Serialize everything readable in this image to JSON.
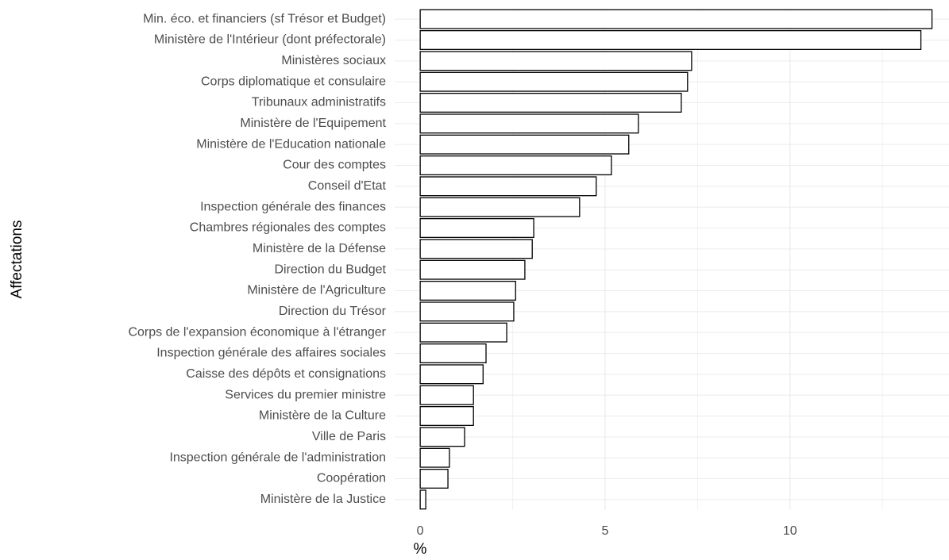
{
  "chart_data": {
    "type": "barh",
    "categories": [
      "Min. éco. et financiers (sf Trésor et Budget)",
      "Ministère de l'Intérieur (dont préfectorale)",
      "Ministères sociaux",
      "Corps diplomatique et consulaire",
      "Tribunaux administratifs",
      "Ministère de l'Equipement",
      "Ministère de l'Education nationale",
      "Cour des comptes",
      "Conseil d'Etat",
      "Inspection générale des finances",
      "Chambres régionales des comptes",
      "Ministère de la Défense",
      "Direction du Budget",
      "Ministère de l'Agriculture",
      "Direction du Trésor",
      "Corps de l'expansion économique à l'étranger",
      "Inspection générale des affaires sociales",
      "Caisse des dépôts et consignations",
      "Services du premier ministre",
      "Ministère de la Culture",
      "Ville de Paris",
      "Inspection générale de l'administration",
      "Coopération",
      "Ministère de la Justice"
    ],
    "values": [
      13.84,
      13.54,
      7.34,
      7.23,
      7.06,
      5.9,
      5.64,
      5.17,
      4.76,
      4.31,
      3.07,
      3.03,
      2.83,
      2.58,
      2.53,
      2.34,
      1.78,
      1.7,
      1.44,
      1.44,
      1.2,
      0.79,
      0.75,
      0.15
    ],
    "color": "#ffffff",
    "edgecolor": "#000000",
    "xlabel": "%",
    "ylabel": "Affectations",
    "xlim": [
      -0.69,
      14.3
    ],
    "xticks": [
      0,
      5,
      10
    ],
    "xminor_ticks": [
      2.5,
      7.5,
      12.5
    ],
    "grid": true
  }
}
